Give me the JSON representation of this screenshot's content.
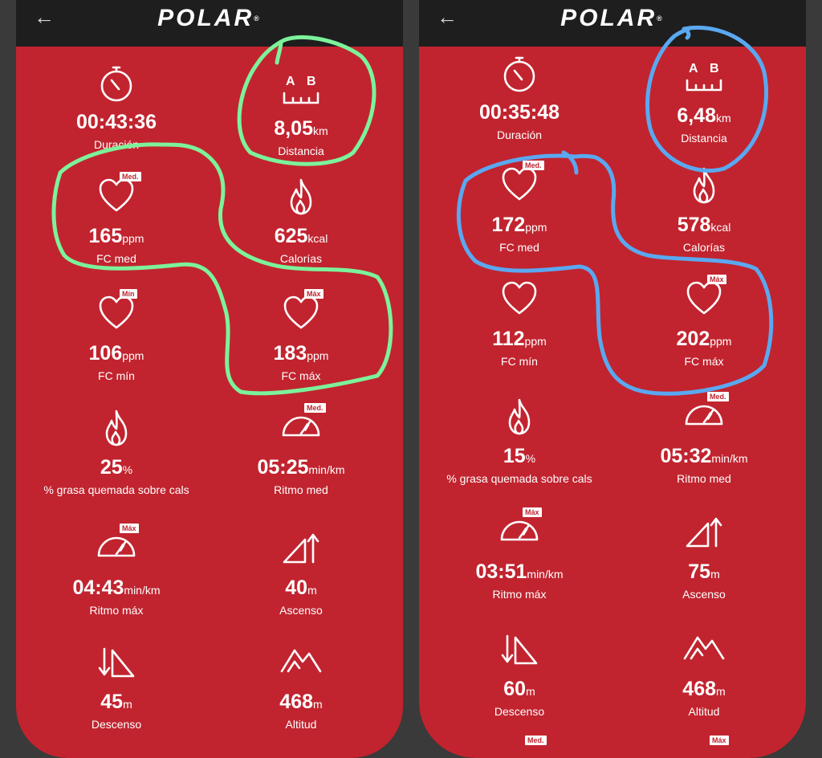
{
  "app": {
    "brand": "POLAR",
    "back_glyph": "←"
  },
  "colors": {
    "screen_bg": "#c1242f",
    "green_marker": "#7cf29a",
    "blue_marker": "#5aa8f0"
  },
  "left": {
    "stats": [
      {
        "icon": "stopwatch-icon",
        "value": "00:43:36",
        "unit": "",
        "label": "Duración",
        "badge": ""
      },
      {
        "icon": "distance-ab-icon",
        "value": "8,05",
        "unit": "km",
        "label": "Distancia",
        "badge": ""
      },
      {
        "icon": "heart-icon",
        "value": "165",
        "unit": "ppm",
        "label": "FC med",
        "badge": "Med."
      },
      {
        "icon": "flame-icon",
        "value": "625",
        "unit": "kcal",
        "label": "Calorías",
        "badge": ""
      },
      {
        "icon": "heart-icon",
        "value": "106",
        "unit": "ppm",
        "label": "FC mín",
        "badge": "Mín"
      },
      {
        "icon": "heart-icon",
        "value": "183",
        "unit": "ppm",
        "label": "FC máx",
        "badge": "Máx"
      },
      {
        "icon": "flame-icon",
        "value": "25",
        "unit": "%",
        "label": "% grasa quemada sobre cals",
        "badge": ""
      },
      {
        "icon": "speedometer-icon",
        "value": "05:25",
        "unit": "min/km",
        "label": "Ritmo med",
        "badge": "Med."
      },
      {
        "icon": "speedometer-icon",
        "value": "04:43",
        "unit": "min/km",
        "label": "Ritmo máx",
        "badge": "Máx"
      },
      {
        "icon": "ascent-icon",
        "value": "40",
        "unit": "m",
        "label": "Ascenso",
        "badge": ""
      },
      {
        "icon": "descent-icon",
        "value": "45",
        "unit": "m",
        "label": "Descenso",
        "badge": ""
      },
      {
        "icon": "mountain-icon",
        "value": "468",
        "unit": "m",
        "label": "Altitud",
        "badge": ""
      }
    ]
  },
  "right": {
    "stats": [
      {
        "icon": "stopwatch-icon",
        "value": "00:35:48",
        "unit": "",
        "label": "Duración",
        "badge": ""
      },
      {
        "icon": "distance-ab-icon",
        "value": "6,48",
        "unit": "km",
        "label": "Distancia",
        "badge": ""
      },
      {
        "icon": "heart-icon",
        "value": "172",
        "unit": "ppm",
        "label": "FC med",
        "badge": "Med."
      },
      {
        "icon": "flame-icon",
        "value": "578",
        "unit": "kcal",
        "label": "Calorías",
        "badge": ""
      },
      {
        "icon": "heart-icon",
        "value": "112",
        "unit": "ppm",
        "label": "FC mín",
        "badge": ""
      },
      {
        "icon": "heart-icon",
        "value": "202",
        "unit": "ppm",
        "label": "FC máx",
        "badge": "Máx"
      },
      {
        "icon": "flame-icon",
        "value": "15",
        "unit": "%",
        "label": "% grasa quemada sobre cals",
        "badge": ""
      },
      {
        "icon": "speedometer-icon",
        "value": "05:32",
        "unit": "min/km",
        "label": "Ritmo med",
        "badge": "Med."
      },
      {
        "icon": "speedometer-icon",
        "value": "03:51",
        "unit": "min/km",
        "label": "Ritmo máx",
        "badge": "Máx"
      },
      {
        "icon": "ascent-icon",
        "value": "75",
        "unit": "m",
        "label": "Ascenso",
        "badge": ""
      },
      {
        "icon": "descent-icon",
        "value": "60",
        "unit": "m",
        "label": "Descenso",
        "badge": ""
      },
      {
        "icon": "mountain-icon",
        "value": "468",
        "unit": "m",
        "label": "Altitud",
        "badge": ""
      }
    ],
    "partial_badges": [
      "Med.",
      "Máx"
    ]
  }
}
